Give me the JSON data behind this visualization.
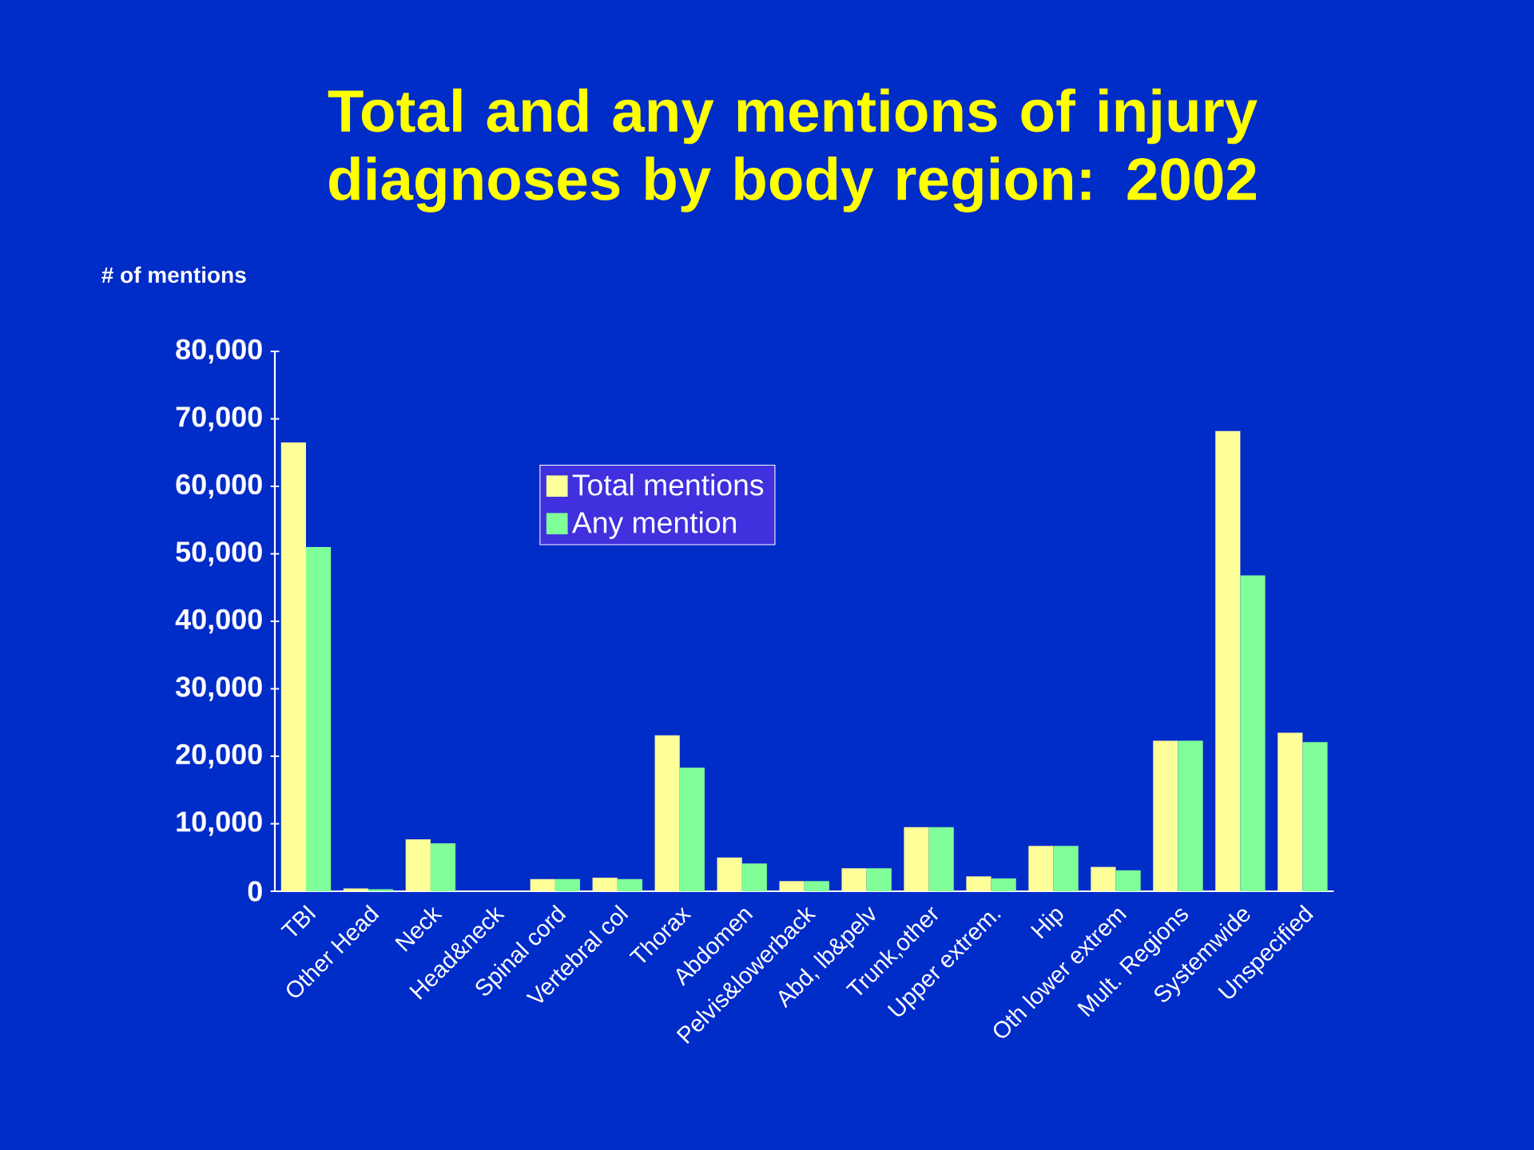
{
  "chart_data": {
    "type": "bar",
    "title": "Total and any mentions of injury diagnoses by body region: 2002",
    "ylabel": "# of mentions",
    "categories": [
      "TBI",
      "Other Head",
      "Neck",
      "Head&neck",
      "Spinal cord",
      "Vertebral col",
      "Thorax",
      "Abdomen",
      "Pelvis&lowerback",
      "Abd, lb&pelv",
      "Trunk,other",
      "Upper extrem.",
      "Hip",
      "Oth lower extrem",
      "Mult. Regions",
      "Systemwide",
      "Unspecified"
    ],
    "series": [
      {
        "name": "Total mentions",
        "color": "#ffff99",
        "values": [
          66500,
          400,
          7700,
          0,
          1800,
          2000,
          23100,
          5000,
          1500,
          3400,
          9500,
          2200,
          6700,
          3600,
          22300,
          68200,
          23500
        ]
      },
      {
        "name": "Any mention",
        "color": "#80ff99",
        "values": [
          51000,
          300,
          7100,
          0,
          1800,
          1800,
          18300,
          4100,
          1500,
          3400,
          9500,
          1900,
          6700,
          3100,
          22300,
          46800,
          22100
        ]
      }
    ],
    "ylim": [
      0,
      80000
    ],
    "yticks": [
      {
        "value": 0,
        "label": "0"
      },
      {
        "value": 10000,
        "label": "10,000"
      },
      {
        "value": 20000,
        "label": "20,000"
      },
      {
        "value": 30000,
        "label": "30,000"
      },
      {
        "value": 40000,
        "label": "40,000"
      },
      {
        "value": 50000,
        "label": "50,000"
      },
      {
        "value": 60000,
        "label": "60,000"
      },
      {
        "value": 70000,
        "label": "70,000"
      },
      {
        "value": 80000,
        "label": "80,000"
      }
    ],
    "legend": "top",
    "grid": false
  }
}
